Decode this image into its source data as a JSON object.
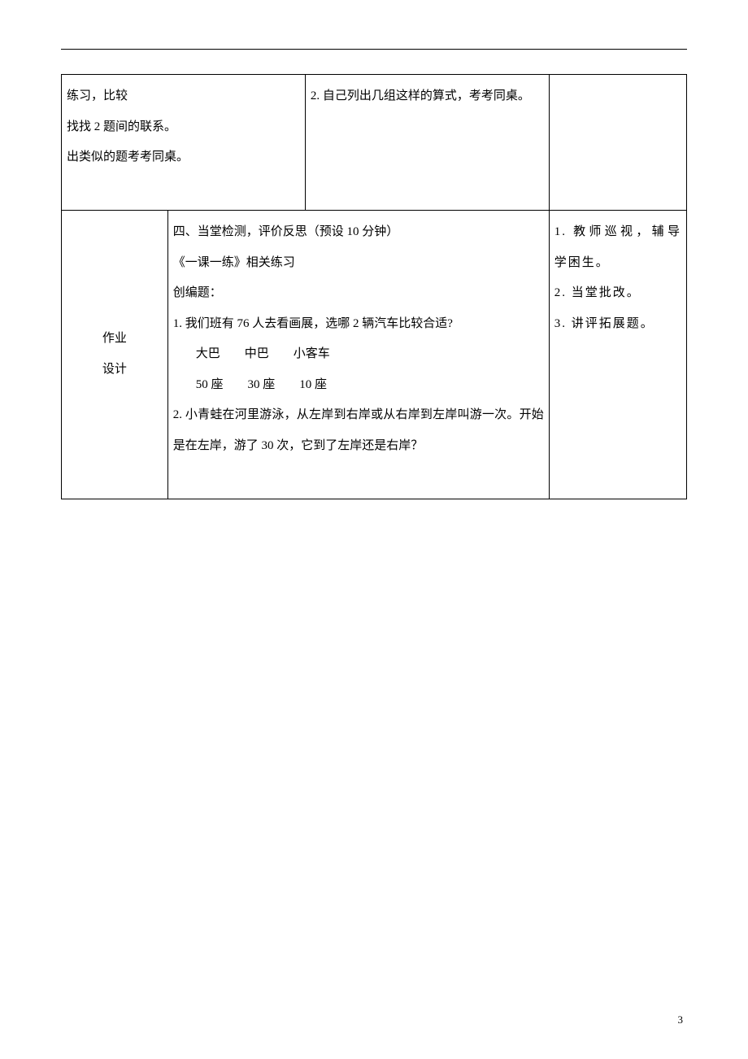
{
  "table": {
    "row1": {
      "col1": {
        "line1": "练习，比较",
        "line2": "找找 2 题间的联系。",
        "line3": "出类似的题考考同桌。"
      },
      "col2": {
        "line1": "2. 自己列出几组这样的算式，考考同桌。"
      }
    },
    "row2": {
      "col1": {
        "line1": "作业",
        "line2": "设计"
      },
      "col2": {
        "line1": "四、当堂检测，评价反思（预设 10 分钟）",
        "line2": "《一课一练》相关练习",
        "line3": "创编题：",
        "line4": "1. 我们班有 76 人去看画展，选哪 2 辆汽车比较合适?",
        "line5": "大巴　　中巴　　小客车",
        "line6": "50 座　　30 座　　10 座",
        "line7": "2. 小青蛙在河里游泳，从左岸到右岸或从右岸到左岸叫游一次。开始是在左岸，游了 30 次，它到了左岸还是右岸？"
      },
      "col3": {
        "line1": "1. 教师巡视，辅导学困生。",
        "line2": "2. 当堂批改。",
        "line3": "3. 讲评拓展题。"
      }
    }
  },
  "page_number": "3"
}
